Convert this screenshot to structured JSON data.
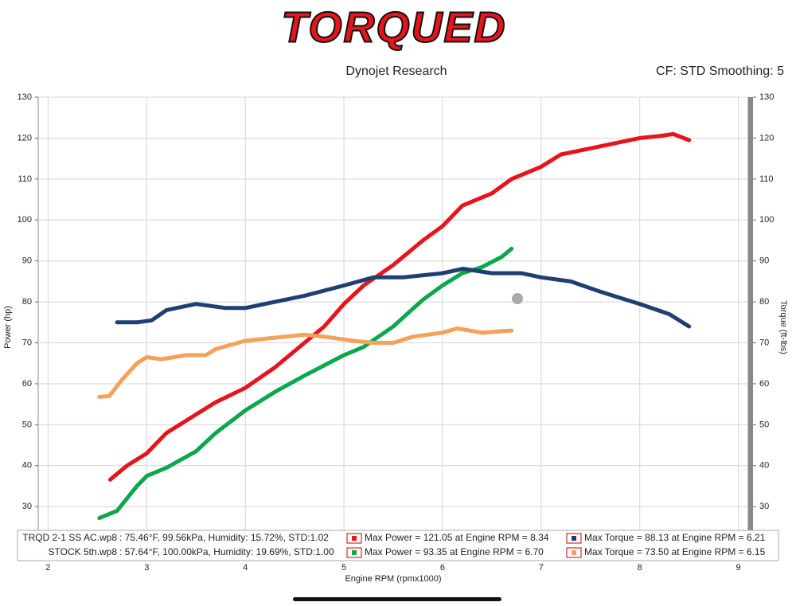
{
  "chart_data": {
    "type": "line",
    "logo": "TORQUED",
    "title": "Dynojet Research",
    "subtitle": "CF: STD Smoothing: 5",
    "x_label": "Engine RPM (rpmx1000)",
    "y_label": "Power (hp)",
    "y2_label": "Torque (ft-lbs)",
    "xlim": [
      1.9,
      9.1
    ],
    "xticks": [
      2,
      3,
      4,
      5,
      6,
      7,
      8,
      9
    ],
    "ylim": [
      17.6,
      130
    ],
    "yticks": [
      30,
      40,
      50,
      60,
      70,
      80,
      90,
      100,
      110,
      120,
      130
    ],
    "y2lim": [
      17.6,
      130
    ],
    "y2ticks": [
      30,
      40,
      50,
      60,
      70,
      80,
      90,
      100,
      110,
      120,
      130
    ],
    "grid": true,
    "runs": [
      {
        "name": "TRQD 2-1 SS AC.wp8",
        "conditions": ": 75.46°F, 99.56kPa, Humidity: 15.72%, STD:1.02"
      },
      {
        "name": "STOCK 5th.wp8",
        "conditions": ": 57.64°F, 100.00kPa, Humidity: 19.69%, STD:1.00"
      }
    ],
    "series": [
      {
        "name": "Max Power = 121.05 at Engine RPM = 8.34",
        "color": "#e8141c",
        "x": [
          2.63,
          2.8,
          3.0,
          3.2,
          3.5,
          3.7,
          4.0,
          4.3,
          4.6,
          4.8,
          5.0,
          5.2,
          5.5,
          5.8,
          6.0,
          6.2,
          6.5,
          6.7,
          7.0,
          7.2,
          7.5,
          7.8,
          8.0,
          8.2,
          8.34,
          8.5
        ],
        "values": [
          36.6,
          40,
          43,
          48,
          52.5,
          55.5,
          59,
          64,
          70,
          74,
          79.5,
          84,
          89,
          95,
          98.5,
          103.5,
          106.5,
          110,
          113,
          116,
          117.5,
          119,
          120,
          120.5,
          121,
          119.5
        ]
      },
      {
        "name": "Max Power = 93.35 at Engine RPM = 6.70",
        "color": "#0aa84a",
        "x": [
          2.52,
          2.7,
          2.9,
          3.0,
          3.2,
          3.5,
          3.7,
          4.0,
          4.3,
          4.6,
          5.0,
          5.2,
          5.5,
          5.8,
          6.0,
          6.2,
          6.4,
          6.6,
          6.7
        ],
        "values": [
          27.2,
          29,
          35,
          37.5,
          39.5,
          43.5,
          48,
          53.5,
          58,
          62,
          67,
          69,
          74,
          80.5,
          84,
          87,
          88.5,
          91,
          93
        ]
      },
      {
        "name": "Max Torque = 88.13 at Engine RPM = 6.21",
        "color": "#1f3f73",
        "axis": "y2",
        "x": [
          2.7,
          2.9,
          3.05,
          3.2,
          3.5,
          3.8,
          4.0,
          4.3,
          4.6,
          5.0,
          5.3,
          5.6,
          6.0,
          6.21,
          6.5,
          6.8,
          7.0,
          7.3,
          7.6,
          8.0,
          8.3,
          8.5
        ],
        "values": [
          75,
          75,
          75.5,
          78,
          79.5,
          78.5,
          78.5,
          80,
          81.5,
          84,
          86,
          86,
          87,
          88.1,
          87,
          87,
          86,
          85,
          82.5,
          79.5,
          77,
          74
        ]
      },
      {
        "name": "Max Torque = 73.50 at Engine RPM = 6.15",
        "color": "#f4a15a",
        "axis": "y2",
        "x": [
          2.52,
          2.62,
          2.75,
          2.9,
          3.0,
          3.15,
          3.4,
          3.6,
          3.7,
          4.0,
          4.2,
          4.4,
          4.6,
          4.8,
          5.1,
          5.3,
          5.5,
          5.7,
          6.0,
          6.15,
          6.4,
          6.7
        ],
        "values": [
          56.8,
          57,
          61,
          65,
          66.5,
          66,
          67,
          67,
          68.5,
          70.5,
          71,
          71.5,
          72,
          71.5,
          70.5,
          70,
          70,
          71.5,
          72.5,
          73.5,
          72.5,
          73
        ]
      }
    ]
  }
}
